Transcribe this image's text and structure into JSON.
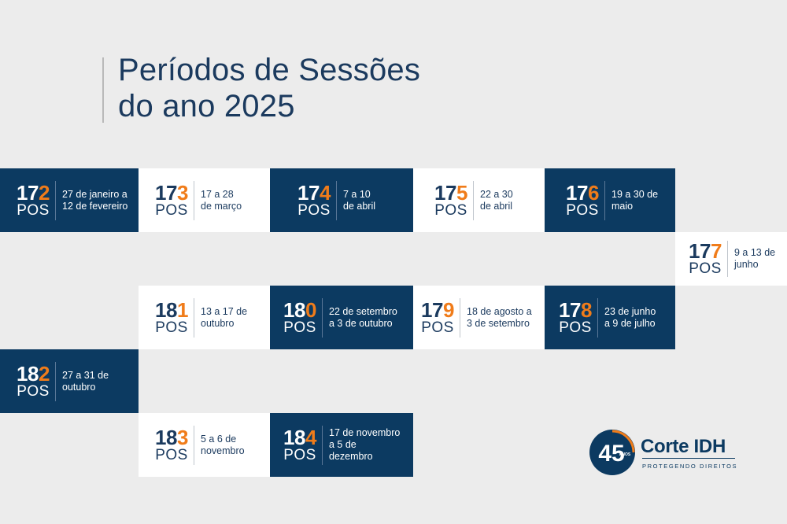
{
  "title": {
    "line1": "Períodos de Sessões",
    "line2": "do ano 2025"
  },
  "colors": {
    "navy": "#0c3a61",
    "orange": "#f07c1a",
    "background": "#ececec"
  },
  "sessions": [
    {
      "prefix": "17",
      "digit": "2",
      "suffix": "POS",
      "dates": "27 de janeiro a\n12 de fevereiro"
    },
    {
      "prefix": "17",
      "digit": "3",
      "suffix": "POS",
      "dates": "17 a 28\nde março"
    },
    {
      "prefix": "17",
      "digit": "4",
      "suffix": "POS",
      "dates": "7 a 10\nde abril"
    },
    {
      "prefix": "17",
      "digit": "5",
      "suffix": "POS",
      "dates": "22 a 30\nde abril"
    },
    {
      "prefix": "17",
      "digit": "6",
      "suffix": "POS",
      "dates": "19 a 30 de\nmaio"
    },
    {
      "prefix": "17",
      "digit": "7",
      "suffix": "POS",
      "dates": "9 a 13 de\njunho"
    },
    {
      "prefix": "17",
      "digit": "8",
      "suffix": "POS",
      "dates": "23 de junho\na 9 de julho"
    },
    {
      "prefix": "17",
      "digit": "9",
      "suffix": "POS",
      "dates": "18 de agosto a\n3 de setembro"
    },
    {
      "prefix": "18",
      "digit": "0",
      "suffix": "POS",
      "dates": "22 de setembro\na 3 de outubro"
    },
    {
      "prefix": "18",
      "digit": "1",
      "suffix": "POS",
      "dates": "13 a 17 de\noutubro"
    },
    {
      "prefix": "18",
      "digit": "2",
      "suffix": "POS",
      "dates": "27 a 31 de\noutubro"
    },
    {
      "prefix": "18",
      "digit": "3",
      "suffix": "POS",
      "dates": "5 a 6 de\nnovembro"
    },
    {
      "prefix": "18",
      "digit": "4",
      "suffix": "POS",
      "dates": "17 de novembro\na 5 de\ndezembro"
    }
  ],
  "logo": {
    "name": "Corte IDH",
    "tagline": "PROTEGENDO DIREITOS",
    "badge_number": "45",
    "badge_text": "ANOS"
  }
}
